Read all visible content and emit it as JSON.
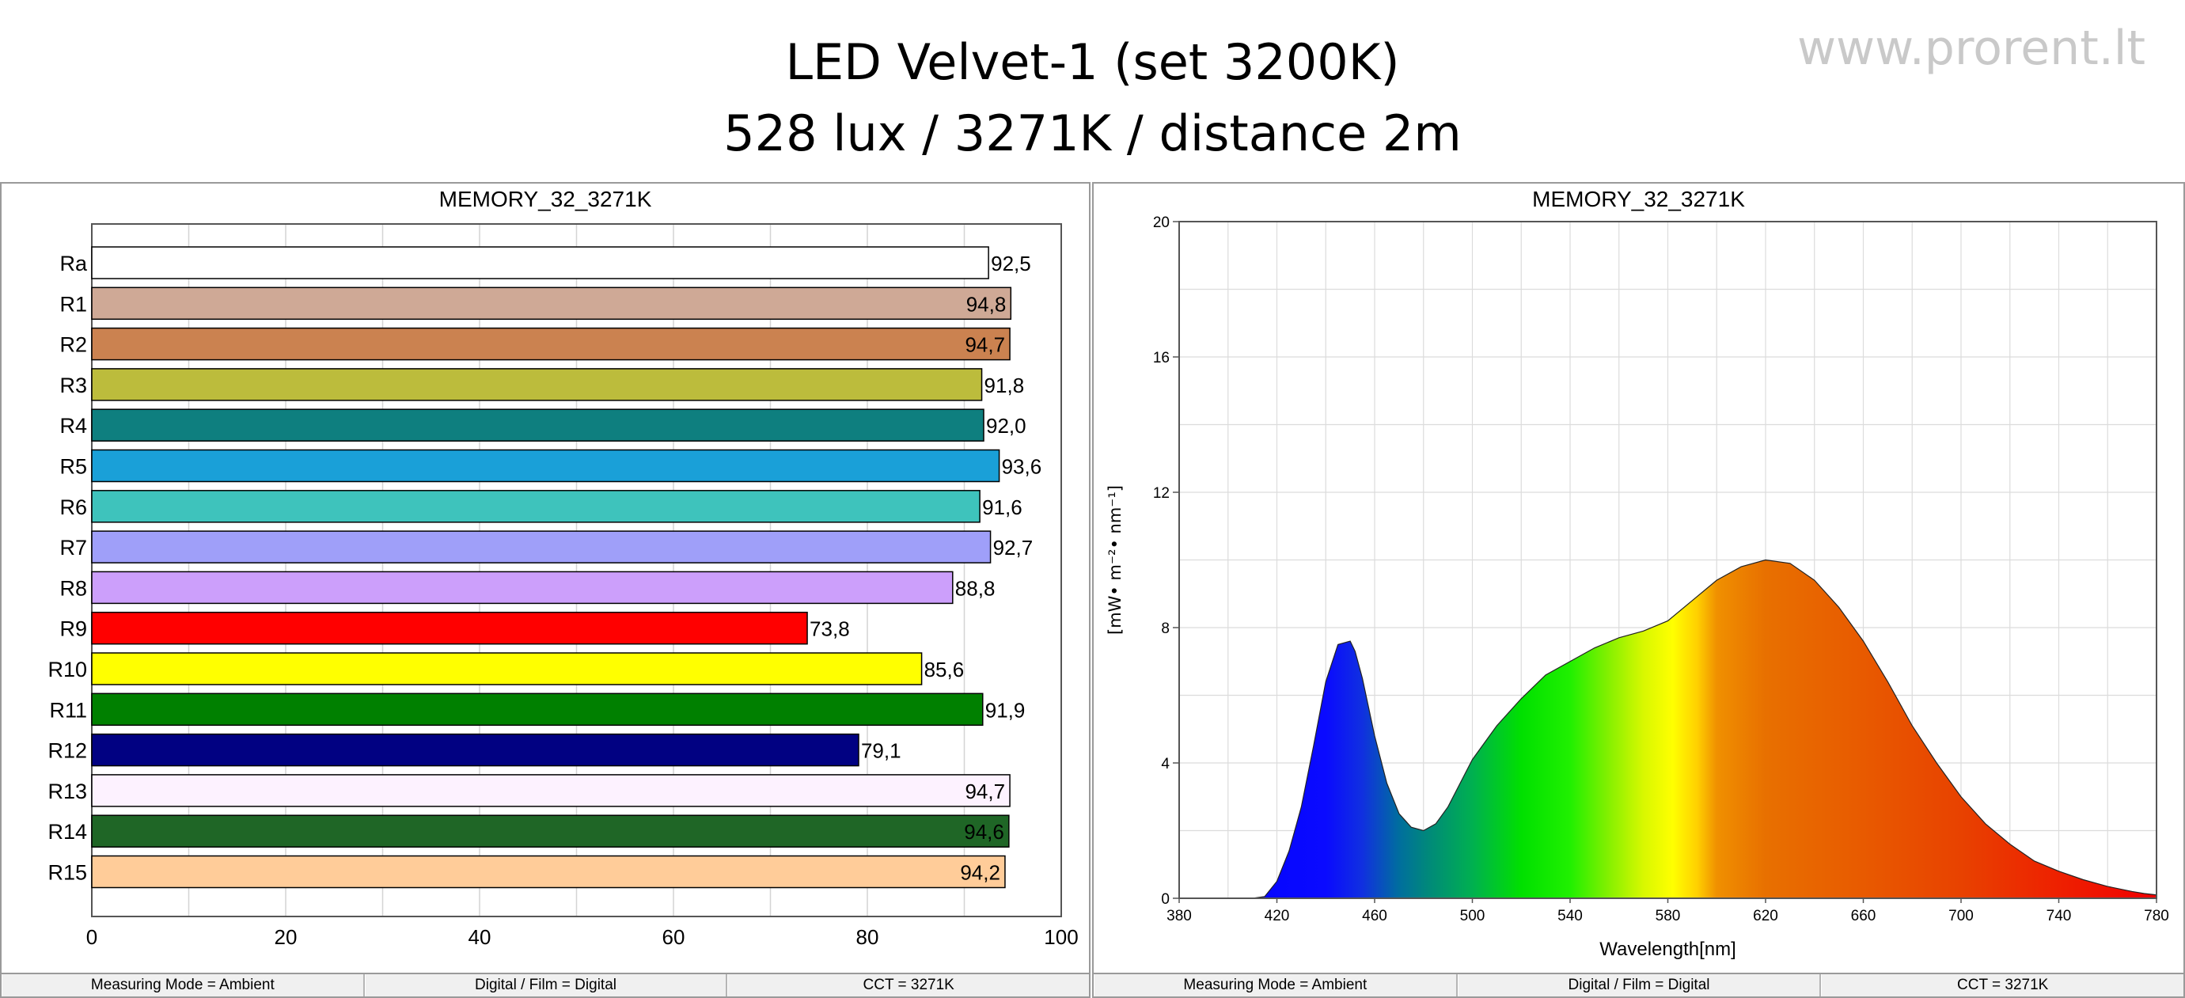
{
  "header": {
    "title_line1": "LED Velvet-1 (set 3200K)",
    "title_line2": "528 lux / 3271K / distance 2m",
    "website": "www.prorent.lt"
  },
  "status": [
    "Measuring Mode = Ambient",
    "Digital / Film = Digital",
    "CCT = 3271K"
  ],
  "chart_data": [
    {
      "type": "bar",
      "orientation": "horizontal",
      "title": "MEMORY_32_3271K",
      "categories": [
        "Ra",
        "R1",
        "R2",
        "R3",
        "R4",
        "R5",
        "R6",
        "R7",
        "R8",
        "R9",
        "R10",
        "R11",
        "R12",
        "R13",
        "R14",
        "R15"
      ],
      "values": [
        92.5,
        94.8,
        94.7,
        91.8,
        92.0,
        93.6,
        91.6,
        92.7,
        88.8,
        73.8,
        85.6,
        91.9,
        79.1,
        94.7,
        94.6,
        94.2
      ],
      "value_labels": [
        "92,5",
        "94,8",
        "94,7",
        "91,8",
        "92,0",
        "93,6",
        "91,6",
        "92,7",
        "88,8",
        "73,8",
        "85,6",
        "91,9",
        "79,1",
        "94,7",
        "94,6",
        "94,2"
      ],
      "colors": [
        "#ffffff",
        "#cfa996",
        "#cb8250",
        "#bcbc3c",
        "#0e7f7f",
        "#1aa0d8",
        "#3ec3bc",
        "#9f9ff9",
        "#cc9ffb",
        "#ff0000",
        "#ffff00",
        "#008000",
        "#010182",
        "#fdf2ff",
        "#1f6626",
        "#ffcc99"
      ],
      "inside_label": [
        false,
        true,
        true,
        false,
        false,
        false,
        false,
        false,
        false,
        false,
        false,
        false,
        false,
        true,
        true,
        true
      ],
      "xlim": [
        0,
        100
      ],
      "xticks": [
        0,
        20,
        40,
        60,
        80,
        100
      ],
      "grid": true
    },
    {
      "type": "area",
      "title": "MEMORY_32_3271K",
      "xlabel": "Wavelength[nm]",
      "ylabel": "[mW• m⁻²• nm⁻¹]",
      "xlim": [
        380,
        780
      ],
      "ylim": [
        0,
        20
      ],
      "xticks": [
        380,
        420,
        460,
        500,
        540,
        580,
        620,
        660,
        700,
        740,
        780
      ],
      "yticks": [
        0,
        4,
        8,
        12,
        16,
        20
      ],
      "x": [
        380,
        410,
        415,
        420,
        425,
        430,
        435,
        440,
        445,
        450,
        452,
        455,
        460,
        465,
        470,
        475,
        480,
        485,
        490,
        495,
        500,
        505,
        510,
        520,
        530,
        540,
        550,
        560,
        570,
        580,
        590,
        600,
        610,
        620,
        630,
        640,
        650,
        660,
        670,
        680,
        690,
        700,
        710,
        720,
        730,
        740,
        750,
        760,
        770,
        775,
        780
      ],
      "y": [
        0,
        0,
        0.05,
        0.5,
        1.4,
        2.7,
        4.5,
        6.4,
        7.5,
        7.6,
        7.3,
        6.5,
        4.8,
        3.4,
        2.5,
        2.1,
        2.0,
        2.2,
        2.7,
        3.4,
        4.1,
        4.6,
        5.1,
        5.9,
        6.6,
        7.0,
        7.4,
        7.7,
        7.9,
        8.2,
        8.8,
        9.4,
        9.8,
        10.0,
        9.9,
        9.4,
        8.6,
        7.6,
        6.4,
        5.1,
        4.0,
        3.0,
        2.2,
        1.6,
        1.1,
        0.8,
        0.55,
        0.35,
        0.2,
        0.14,
        0.1
      ],
      "grid": true
    }
  ]
}
